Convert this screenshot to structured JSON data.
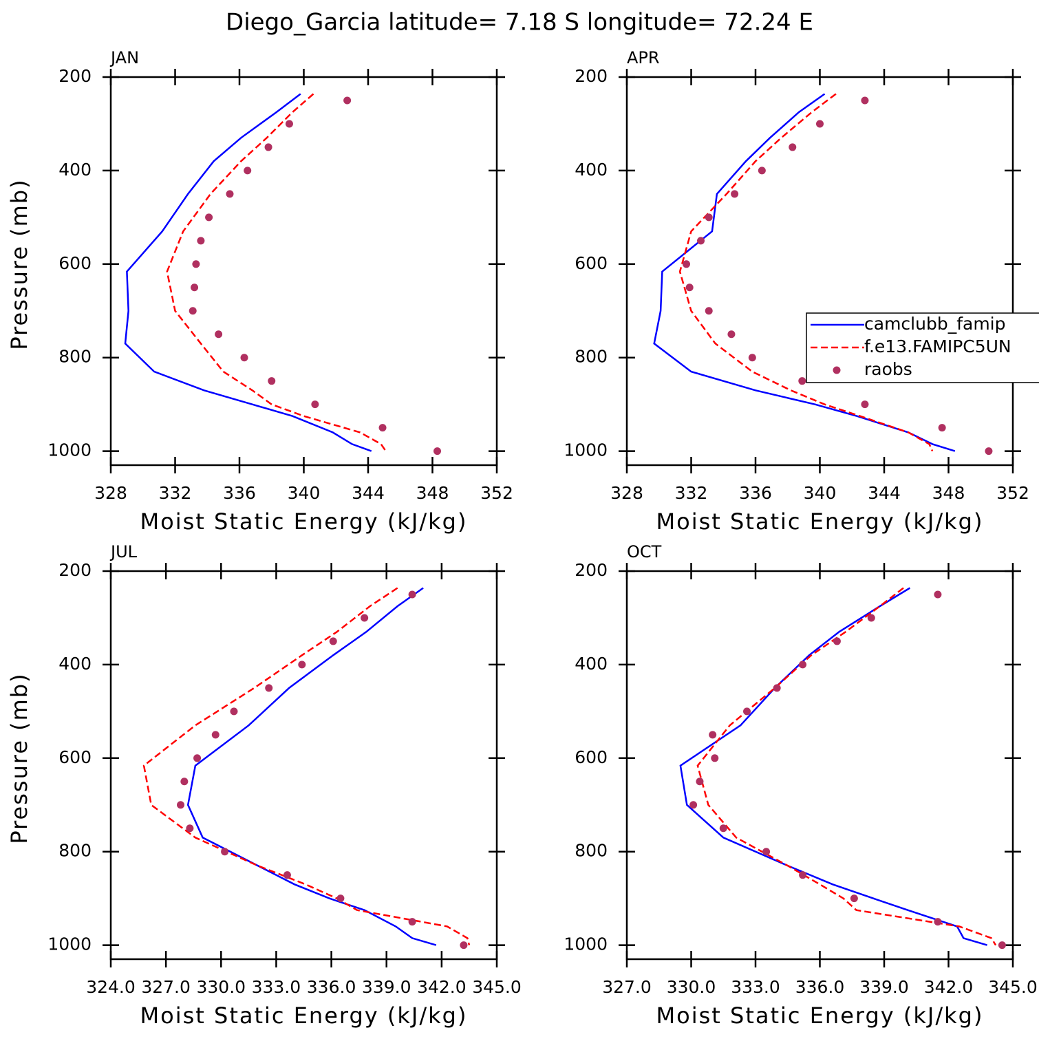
{
  "title": "Diego_Garcia  latitude= 7.18 S longitude= 72.24 E",
  "chart_data": [
    {
      "type": "line",
      "title": "JAN",
      "xlabel": "Moist Static Energy (kJ/kg)",
      "ylabel": "Pressure (mb)",
      "xlim": [
        328,
        352
      ],
      "xticks": [
        328,
        332,
        336,
        340,
        344,
        348,
        352
      ],
      "ylim": [
        1030,
        200
      ],
      "yticks": [
        200,
        400,
        600,
        800,
        1000
      ],
      "series": [
        {
          "style": "solid",
          "color": "#0000ff",
          "y": [
            236,
            275,
            330,
            380,
            450,
            530,
            616,
            700,
            770,
            830,
            870,
            900,
            925,
            960,
            985,
            1000
          ],
          "values": [
            339.8,
            338.3,
            336.1,
            334.4,
            332.8,
            331.2,
            329.0,
            329.1,
            328.9,
            330.7,
            333.8,
            336.8,
            339.3,
            341.8,
            343.0,
            344.2
          ]
        },
        {
          "style": "dashed",
          "color": "#ff0000",
          "y": [
            236,
            275,
            330,
            380,
            450,
            530,
            616,
            700,
            770,
            830,
            870,
            900,
            925,
            960,
            985,
            1000
          ],
          "values": [
            340.6,
            339.3,
            337.7,
            336.1,
            334.2,
            332.5,
            331.5,
            332.0,
            333.6,
            335.0,
            336.8,
            338.0,
            340.0,
            343.5,
            344.8,
            345.1
          ]
        },
        {
          "style": "markers",
          "color": "#b03060",
          "y": [
            250,
            300,
            350,
            400,
            450,
            500,
            550,
            600,
            650,
            700,
            750,
            800,
            850,
            900,
            950,
            1000
          ],
          "values": [
            342.7,
            339.1,
            337.8,
            336.5,
            335.4,
            334.1,
            333.6,
            333.3,
            333.2,
            333.1,
            334.7,
            336.3,
            338.0,
            340.7,
            344.9,
            348.3
          ]
        }
      ]
    },
    {
      "type": "line",
      "title": "APR",
      "xlabel": "Moist Static Energy (kJ/kg)",
      "legend": "right",
      "xlim": [
        328,
        352
      ],
      "xticks": [
        328,
        332,
        336,
        340,
        344,
        348,
        352
      ],
      "ylim": [
        1030,
        200
      ],
      "yticks": [
        200,
        400,
        600,
        800,
        1000
      ],
      "series": [
        {
          "name": "camclubb_famip",
          "style": "solid",
          "color": "#0000ff",
          "y": [
            236,
            275,
            330,
            380,
            450,
            530,
            616,
            700,
            770,
            830,
            870,
            900,
            925,
            960,
            985,
            1000
          ],
          "values": [
            340.3,
            338.7,
            336.9,
            335.4,
            333.6,
            333.3,
            330.2,
            330.1,
            329.7,
            332.0,
            336.0,
            339.7,
            342.3,
            345.5,
            347.0,
            348.4
          ]
        },
        {
          "name": "f.e13.FAMIPC5UN",
          "style": "dashed",
          "color": "#ff0000",
          "y": [
            236,
            275,
            330,
            380,
            450,
            530,
            616,
            700,
            770,
            830,
            870,
            900,
            925,
            960,
            985,
            1000
          ],
          "values": [
            341.0,
            339.5,
            337.6,
            336.0,
            334.2,
            332.0,
            331.3,
            332.0,
            333.5,
            335.8,
            338.2,
            340.3,
            342.5,
            345.5,
            346.8,
            347.0
          ]
        },
        {
          "name": "raobs",
          "style": "markers",
          "color": "#b03060",
          "y": [
            250,
            300,
            350,
            400,
            450,
            500,
            550,
            600,
            650,
            700,
            750,
            800,
            850,
            900,
            950,
            1000
          ],
          "values": [
            342.8,
            340.0,
            338.3,
            336.4,
            334.7,
            333.1,
            332.6,
            331.7,
            331.9,
            333.1,
            334.5,
            335.8,
            338.9,
            342.8,
            347.6,
            350.5
          ]
        }
      ]
    },
    {
      "type": "line",
      "title": "JUL",
      "xlabel": "Moist Static Energy (kJ/kg)",
      "ylabel": "Pressure (mb)",
      "xlim": [
        324,
        345
      ],
      "xticks": [
        {
          "value": 324,
          "label": "324.0"
        },
        {
          "value": 327,
          "label": "327.0"
        },
        {
          "value": 330,
          "label": "330.0"
        },
        {
          "value": 333,
          "label": "333.0"
        },
        {
          "value": 336,
          "label": "336.0"
        },
        {
          "value": 339,
          "label": "339.0"
        },
        {
          "value": 342,
          "label": "342.0"
        },
        {
          "value": 345,
          "label": "345.0"
        }
      ],
      "ylim": [
        1030,
        200
      ],
      "yticks": [
        200,
        400,
        600,
        800,
        1000
      ],
      "series": [
        {
          "style": "solid",
          "color": "#0000ff",
          "y": [
            236,
            275,
            330,
            380,
            450,
            530,
            616,
            700,
            770,
            830,
            870,
            900,
            925,
            960,
            985,
            1000
          ],
          "values": [
            341.0,
            339.6,
            337.9,
            336.1,
            333.7,
            331.5,
            328.6,
            328.2,
            329.0,
            332.0,
            334.0,
            335.9,
            337.8,
            339.5,
            340.4,
            341.7
          ]
        },
        {
          "style": "dashed",
          "color": "#ff0000",
          "y": [
            236,
            275,
            330,
            380,
            450,
            530,
            616,
            700,
            770,
            830,
            870,
            900,
            925,
            960,
            985,
            1000
          ],
          "values": [
            339.6,
            338.1,
            336.3,
            334.4,
            331.8,
            328.6,
            325.8,
            326.2,
            328.6,
            332.0,
            334.6,
            336.3,
            337.4,
            342.3,
            343.4,
            343.5
          ]
        },
        {
          "style": "markers",
          "color": "#b03060",
          "y": [
            250,
            300,
            350,
            400,
            450,
            500,
            550,
            600,
            650,
            700,
            750,
            800,
            850,
            900,
            950,
            1000
          ],
          "values": [
            340.4,
            337.8,
            336.1,
            334.4,
            332.6,
            330.7,
            329.7,
            328.7,
            328.0,
            327.8,
            328.3,
            330.2,
            333.6,
            336.5,
            340.4,
            343.2
          ]
        }
      ]
    },
    {
      "type": "line",
      "title": "OCT",
      "xlabel": "Moist Static Energy (kJ/kg)",
      "xlim": [
        327,
        345
      ],
      "xticks": [
        {
          "value": 327,
          "label": "327.0"
        },
        {
          "value": 330,
          "label": "330.0"
        },
        {
          "value": 333,
          "label": "333.0"
        },
        {
          "value": 336,
          "label": "336.0"
        },
        {
          "value": 339,
          "label": "339.0"
        },
        {
          "value": 342,
          "label": "342.0"
        },
        {
          "value": 345,
          "label": "345.0"
        }
      ],
      "ylim": [
        1030,
        200
      ],
      "yticks": [
        200,
        400,
        600,
        800,
        1000
      ],
      "series": [
        {
          "style": "solid",
          "color": "#0000ff",
          "y": [
            236,
            275,
            330,
            380,
            450,
            530,
            616,
            700,
            770,
            830,
            870,
            900,
            925,
            960,
            985,
            1000
          ],
          "values": [
            340.2,
            338.8,
            336.9,
            335.5,
            333.9,
            332.3,
            329.5,
            329.8,
            331.5,
            334.5,
            336.6,
            338.5,
            340.1,
            342.4,
            342.7,
            343.8
          ]
        },
        {
          "style": "dashed",
          "color": "#ff0000",
          "y": [
            236,
            275,
            330,
            380,
            450,
            530,
            616,
            700,
            770,
            830,
            870,
            900,
            925,
            960,
            985,
            1000
          ],
          "values": [
            339.9,
            338.8,
            337.2,
            335.6,
            333.9,
            331.8,
            330.3,
            330.8,
            332.1,
            334.5,
            336.0,
            337.1,
            337.7,
            342.5,
            344.0,
            344.2
          ]
        },
        {
          "style": "markers",
          "color": "#b03060",
          "y": [
            250,
            300,
            350,
            400,
            450,
            500,
            550,
            600,
            650,
            700,
            750,
            800,
            850,
            900,
            950,
            1000
          ],
          "values": [
            341.5,
            338.4,
            336.8,
            335.2,
            334.0,
            332.6,
            331.0,
            331.1,
            330.4,
            330.1,
            331.5,
            333.5,
            335.2,
            337.6,
            341.5,
            344.5
          ]
        }
      ]
    }
  ]
}
